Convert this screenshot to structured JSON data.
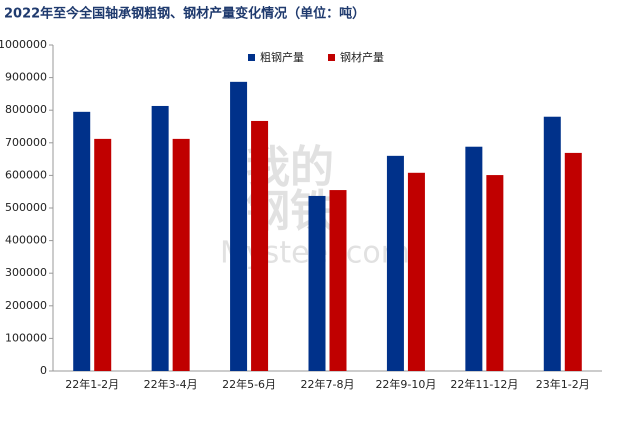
{
  "chart_data": {
    "type": "bar",
    "title": "2022年至今全国轴承钢粗钢、钢材产量变化情况（单位：吨）",
    "watermark": [
      "我的",
      "钢铁",
      "Mysteel.com"
    ],
    "categories": [
      "22年1-2月",
      "22年3-4月",
      "22年5-6月",
      "22年7-8月",
      "22年9-10月",
      "22年11-12月",
      "23年1-2月"
    ],
    "series": [
      {
        "name": "粗钢产量",
        "color": "#00318a",
        "values": [
          795000,
          813000,
          887000,
          537000,
          660000,
          688000,
          780000
        ]
      },
      {
        "name": "钢材产量",
        "color": "#c00000",
        "values": [
          712000,
          712000,
          767000,
          555000,
          608000,
          601000,
          669000
        ]
      }
    ],
    "ylim": [
      0,
      1000000
    ],
    "yticks": [
      0,
      100000,
      200000,
      300000,
      400000,
      500000,
      600000,
      700000,
      800000,
      900000,
      1000000
    ],
    "grid": false,
    "legend": "top"
  }
}
